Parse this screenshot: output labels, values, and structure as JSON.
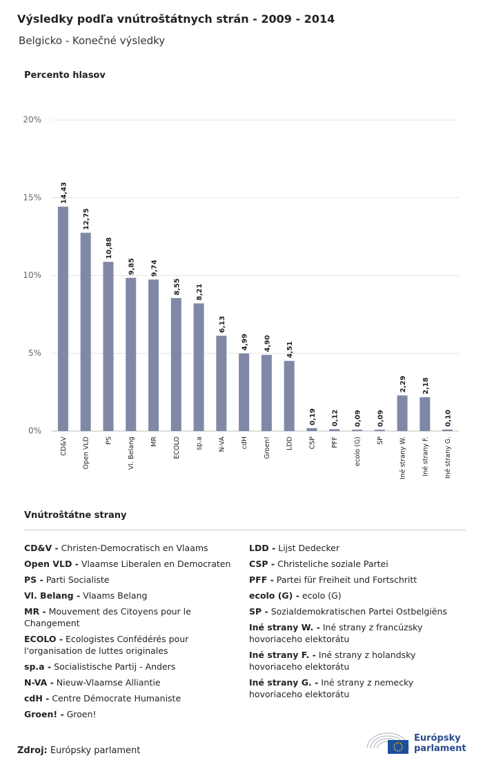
{
  "chart_data": {
    "type": "bar",
    "title": "Výsledky podľa vnútroštátnych strán - 2009 - 2014",
    "subtitle": "Belgicko - Konečné výsledky",
    "y_label": "Percento hlasov",
    "categories": [
      "CD&V",
      "Open VLD",
      "PS",
      "Vl. Belang",
      "MR",
      "ECOLO",
      "sp.a",
      "N-VA",
      "cdH",
      "Groen!",
      "LDD",
      "CSP",
      "PFF",
      "ecolo (G)",
      "SP",
      "Iné strany W.",
      "Iné strany F.",
      "Iné strany G."
    ],
    "values": [
      14.43,
      12.75,
      10.88,
      9.85,
      9.74,
      8.55,
      8.21,
      6.13,
      4.99,
      4.9,
      4.51,
      0.19,
      0.12,
      0.09,
      0.09,
      2.29,
      2.18,
      0.1
    ],
    "value_labels": [
      "14,43",
      "12,75",
      "10,88",
      "9,85",
      "9,74",
      "8,55",
      "8,21",
      "6,13",
      "4,99",
      "4,90",
      "4,51",
      "0,19",
      "0,12",
      "0,09",
      "0,09",
      "2,29",
      "2,18",
      "0,10"
    ],
    "color": "#8088a6",
    "ylim": [
      0,
      20
    ],
    "yticks": [
      {
        "value": 0,
        "label": "0%"
      },
      {
        "value": 5,
        "label": "5%"
      },
      {
        "value": 10,
        "label": "10%"
      },
      {
        "value": 15,
        "label": "15%"
      },
      {
        "value": 20,
        "label": "20%"
      }
    ],
    "grid": true
  },
  "parties": {
    "heading": "Vnútroštátne strany",
    "left": [
      {
        "abbr": "CD&V -",
        "name": "Christen-Democratisch en Vlaams"
      },
      {
        "abbr": "Open VLD -",
        "name": "Vlaamse Liberalen en Democraten"
      },
      {
        "abbr": "PS -",
        "name": "Parti Socialiste"
      },
      {
        "abbr": "Vl. Belang -",
        "name": "Vlaams Belang"
      },
      {
        "abbr": "MR -",
        "name": "Mouvement des Citoyens pour le Changement"
      },
      {
        "abbr": "ECOLO -",
        "name": "Ecologistes Confédérés pour l'organisation de luttes originales"
      },
      {
        "abbr": "sp.a -",
        "name": "Socialistische Partij - Anders"
      },
      {
        "abbr": "N-VA -",
        "name": "Nieuw-Vlaamse Alliantie"
      },
      {
        "abbr": "cdH -",
        "name": "Centre Démocrate Humaniste"
      },
      {
        "abbr": "Groen! -",
        "name": "Groen!"
      }
    ],
    "right": [
      {
        "abbr": "LDD -",
        "name": "Lijst Dedecker"
      },
      {
        "abbr": "CSP -",
        "name": "Christeliche soziale Partei"
      },
      {
        "abbr": "PFF -",
        "name": "Partei für Freiheit und Fortschritt"
      },
      {
        "abbr": "ecolo (G) -",
        "name": "ecolo (G)"
      },
      {
        "abbr": "SP -",
        "name": "Sozialdemokratischen Partei Ostbelgiëns"
      },
      {
        "abbr": "Iné strany W. -",
        "name": "Iné strany z francúzsky hovoriaceho elektorátu"
      },
      {
        "abbr": "Iné strany F. -",
        "name": "Iné strany z holandsky hovoriaceho elektorátu"
      },
      {
        "abbr": "Iné strany G. -",
        "name": "Iné strany z nemecky hovoriaceho elektorátu"
      }
    ]
  },
  "source": {
    "label": "Zdroj:",
    "text": "Európsky parlament"
  },
  "logo": {
    "lines": [
      "Európsky",
      "parlament"
    ]
  }
}
